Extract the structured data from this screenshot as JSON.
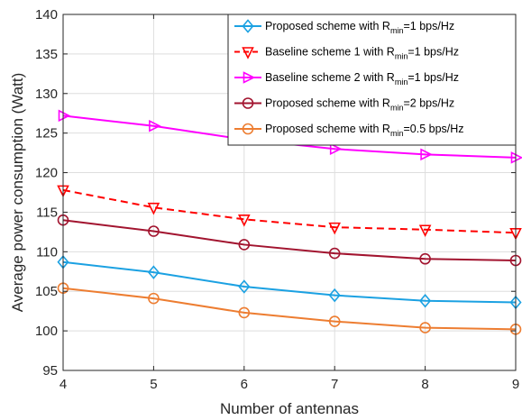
{
  "chart_data": {
    "type": "line",
    "xlabel": "Number of antennas",
    "ylabel": "Average power consumption (Watt)",
    "xlim": [
      4,
      9
    ],
    "ylim": [
      95,
      140
    ],
    "xticks": [
      4,
      5,
      6,
      7,
      8,
      9
    ],
    "yticks": [
      95,
      100,
      105,
      110,
      115,
      120,
      125,
      130,
      135,
      140
    ],
    "grid": true,
    "legend_position": "top-right",
    "x": [
      4,
      5,
      6,
      7,
      8,
      9
    ],
    "series": [
      {
        "name_main": "Proposed scheme with R",
        "name_sub": "min",
        "name_tail": "=1 bps/Hz",
        "values": [
          108.7,
          107.4,
          105.6,
          104.5,
          103.8,
          103.6
        ],
        "color": "#1ba1e2",
        "dash": "solid",
        "marker": "diamond"
      },
      {
        "name_main": "Baseline scheme 1 with R",
        "name_sub": "min",
        "name_tail": "=1 bps/Hz",
        "values": [
          117.8,
          115.6,
          114.1,
          113.1,
          112.8,
          112.4
        ],
        "color": "#ff0000",
        "dash": "dashed",
        "marker": "triangle-down"
      },
      {
        "name_main": "Baseline scheme 2 with R",
        "name_sub": "min",
        "name_tail": "=1 bps/Hz",
        "values": [
          127.2,
          125.9,
          124.2,
          123.0,
          122.3,
          121.9
        ],
        "color": "#ff00ff",
        "dash": "solid",
        "marker": "triangle-right"
      },
      {
        "name_main": "Proposed scheme with R",
        "name_sub": "min",
        "name_tail": "=2 bps/Hz",
        "values": [
          114.0,
          112.6,
          110.9,
          109.8,
          109.1,
          108.9
        ],
        "color": "#a2142f",
        "dash": "solid",
        "marker": "circle"
      },
      {
        "name_main": "Proposed scheme with R",
        "name_sub": "min",
        "name_tail": "=0.5 bps/Hz",
        "values": [
          105.4,
          104.1,
          102.3,
          101.2,
          100.4,
          100.2
        ],
        "color": "#ed7d31",
        "dash": "solid",
        "marker": "circle"
      }
    ]
  }
}
